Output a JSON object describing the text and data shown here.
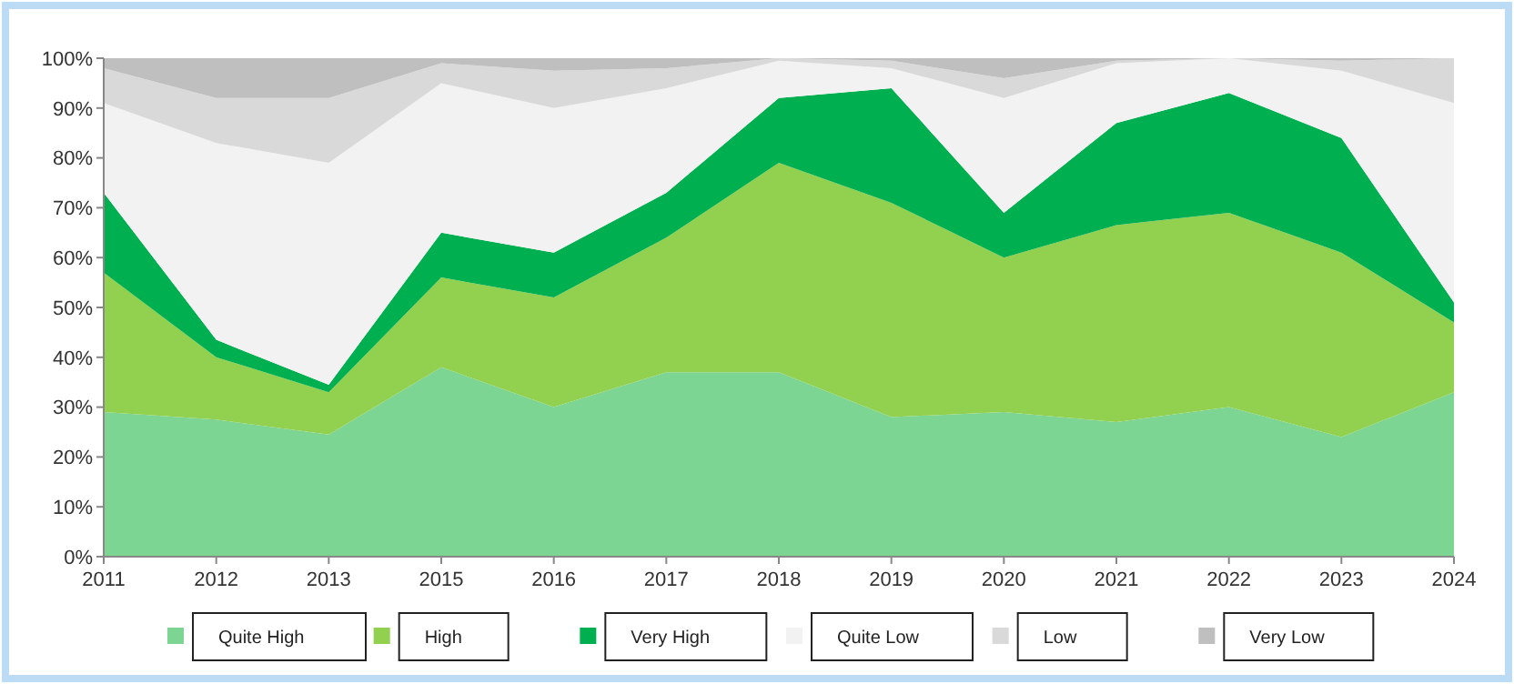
{
  "chart_data": {
    "type": "area",
    "stacked": true,
    "categories": [
      "2011",
      "2012",
      "2013",
      "2015",
      "2016",
      "2017",
      "2018",
      "2019",
      "2020",
      "2021",
      "2022",
      "2023",
      "2024"
    ],
    "series": [
      {
        "name": "Quite High",
        "color": "#7dd594",
        "values": [
          29,
          27.5,
          24.5,
          38,
          30,
          37,
          37,
          28,
          29,
          27,
          30,
          24,
          33
        ]
      },
      {
        "name": "High",
        "color": "#92d050",
        "values": [
          28,
          12.5,
          8.5,
          18,
          22,
          27,
          42,
          43,
          31,
          39.5,
          39,
          37,
          14
        ]
      },
      {
        "name": "Very High",
        "color": "#00b050",
        "values": [
          16,
          3.5,
          1.5,
          9,
          9,
          9,
          13,
          23,
          9,
          20.5,
          24,
          23,
          4
        ]
      },
      {
        "name": "Quite Low",
        "color": "#f2f2f2",
        "values": [
          18,
          39.5,
          44.5,
          30,
          29,
          21,
          7.5,
          4,
          23,
          12,
          7,
          13.5,
          40
        ]
      },
      {
        "name": "Low",
        "color": "#d9d9d9",
        "values": [
          7,
          9,
          13,
          4,
          7.5,
          4,
          0.5,
          1.5,
          4,
          0.5,
          0,
          2,
          9
        ]
      },
      {
        "name": "Very Low",
        "color": "#bfbfbf",
        "values": [
          2,
          8,
          8,
          1,
          2.5,
          2,
          0,
          0.5,
          4,
          0.5,
          0,
          0.5,
          0
        ]
      }
    ],
    "ylim": [
      0,
      100
    ],
    "yticks": [
      {
        "value": 0,
        "label": "0%"
      },
      {
        "value": 10,
        "label": "10%"
      },
      {
        "value": 20,
        "label": "20%"
      },
      {
        "value": 30,
        "label": "30%"
      },
      {
        "value": 40,
        "label": "40%"
      },
      {
        "value": 50,
        "label": "50%"
      },
      {
        "value": 60,
        "label": "60%"
      },
      {
        "value": 70,
        "label": "70%"
      },
      {
        "value": 80,
        "label": "80%"
      },
      {
        "value": 90,
        "label": "90%"
      },
      {
        "value": 100,
        "label": "100%"
      }
    ],
    "legend": "bottom"
  }
}
